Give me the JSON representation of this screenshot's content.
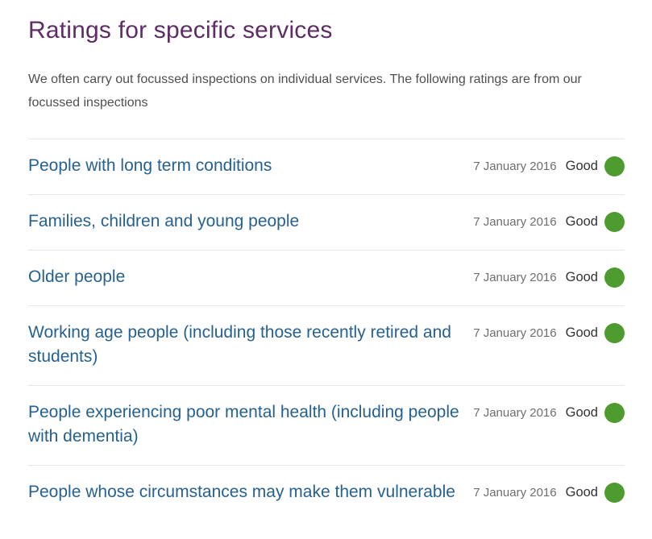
{
  "page": {
    "title": "Ratings for specific services",
    "intro": "We often carry out focussed inspections on individual services. The following ratings are from our focussed inspections"
  },
  "colors": {
    "title": "#5E2D66",
    "link": "#26618F",
    "date": "#6E6E6E",
    "rating_text": "#333333",
    "rating_good": "#4E9C2F",
    "divider": "#E7E7E7"
  },
  "ratings": [
    {
      "service": "People with long term conditions",
      "date": "7 January 2016",
      "rating": "Good"
    },
    {
      "service": "Families, children and young people",
      "date": "7 January 2016",
      "rating": "Good"
    },
    {
      "service": "Older people",
      "date": "7 January 2016",
      "rating": "Good"
    },
    {
      "service": "Working age people (including those recently retired and students)",
      "date": "7 January 2016",
      "rating": "Good"
    },
    {
      "service": "People experiencing poor mental health (including people with dementia)",
      "date": "7 January 2016",
      "rating": "Good"
    },
    {
      "service": "People whose circumstances may make them vulnerable",
      "date": "7 January 2016",
      "rating": "Good"
    }
  ]
}
